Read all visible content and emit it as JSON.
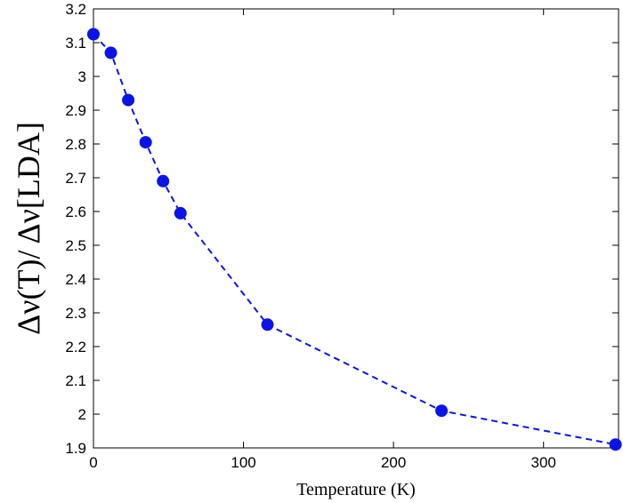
{
  "chart_data": {
    "type": "line",
    "title": "",
    "xlabel": "Temperature (K)",
    "ylabel": "Δν(T)/ Δν[LDA]",
    "xlim": [
      0,
      350
    ],
    "ylim": [
      1.9,
      3.2
    ],
    "x_ticks": [
      0,
      100,
      200,
      300
    ],
    "x_tick_labels": [
      "0",
      "100",
      "200",
      "300"
    ],
    "y_ticks": [
      1.9,
      2.0,
      2.1,
      2.2,
      2.3,
      2.4,
      2.5,
      2.6,
      2.7,
      2.8,
      2.9,
      3.0,
      3.1,
      3.2
    ],
    "y_tick_labels": [
      "1.9",
      "2",
      "2.1",
      "2.2",
      "2.3",
      "2.4",
      "2.5",
      "2.6",
      "2.7",
      "2.8",
      "2.9",
      "3",
      "3.1",
      "3.2"
    ],
    "grid": false,
    "legend": "none",
    "series": [
      {
        "color": "#0a14e6",
        "line_style": "dashed",
        "marker": "circle",
        "x": [
          0,
          11.6,
          23.2,
          34.8,
          46.4,
          58,
          116,
          232,
          348
        ],
        "y": [
          3.125,
          3.07,
          2.93,
          2.805,
          2.69,
          2.595,
          2.265,
          2.01,
          1.91
        ]
      }
    ]
  }
}
